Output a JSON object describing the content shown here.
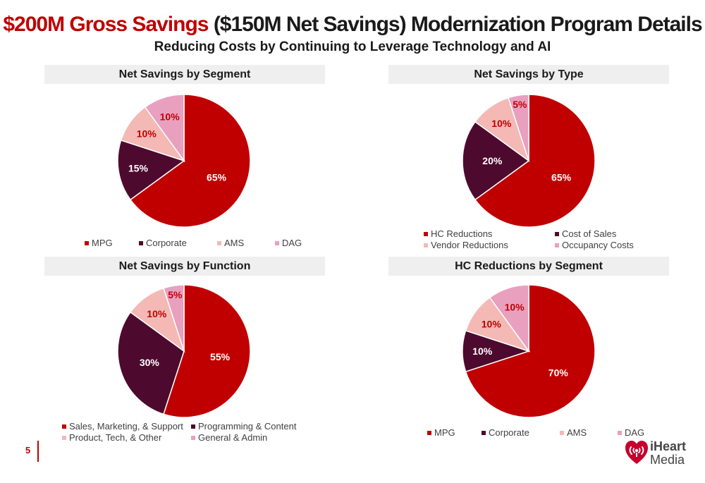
{
  "header": {
    "title_red": "$200M Gross Savings",
    "title_rest": " ($150M Net Savings) Modernization Program Details",
    "subtitle": "Reducing Costs by Continuing to Leverage Technology and AI"
  },
  "colors": {
    "dark_red": "#c00000",
    "maroon": "#4d0a2e",
    "light_pink": "#f4b9b4",
    "pink": "#e9a0bf"
  },
  "chart_data": [
    {
      "type": "pie",
      "title": "Net Savings by Segment",
      "categories": [
        "MPG",
        "Corporate",
        "AMS",
        "DAG"
      ],
      "values": [
        65,
        15,
        10,
        10
      ],
      "labels": [
        "65%",
        "15%",
        "10%",
        "10%"
      ],
      "colors": [
        "#c00000",
        "#4d0a2e",
        "#f4b9b4",
        "#e9a0bf"
      ],
      "legend_position": "bottom"
    },
    {
      "type": "pie",
      "title": "Net Savings by Type",
      "categories": [
        "HC Reductions",
        "Cost of Sales",
        "Vendor Reductions",
        "Occupancy Costs"
      ],
      "values": [
        65,
        20,
        10,
        5
      ],
      "labels": [
        "65%",
        "20%",
        "10%",
        "5%"
      ],
      "colors": [
        "#c00000",
        "#4d0a2e",
        "#f4b9b4",
        "#e9a0bf"
      ],
      "legend_position": "bottom"
    },
    {
      "type": "pie",
      "title": "Net Savings by Function",
      "categories": [
        "Sales, Marketing, & Support",
        "Programming & Content",
        "Product, Tech, & Other",
        "General & Admin"
      ],
      "values": [
        55,
        30,
        10,
        5
      ],
      "labels": [
        "55%",
        "30%",
        "10%",
        "5%"
      ],
      "colors": [
        "#c00000",
        "#4d0a2e",
        "#f4b9b4",
        "#e9a0bf"
      ],
      "legend_position": "bottom"
    },
    {
      "type": "pie",
      "title": "HC Reductions by Segment",
      "categories": [
        "MPG",
        "Corporate",
        "AMS",
        "DAG"
      ],
      "values": [
        70,
        10,
        10,
        10
      ],
      "labels": [
        "70%",
        "10%",
        "10%",
        "10%"
      ],
      "colors": [
        "#c00000",
        "#4d0a2e",
        "#f4b9b4",
        "#e9a0bf"
      ],
      "legend_position": "bottom"
    }
  ],
  "footer": {
    "page_number": "5",
    "logo_line1": "iHeart",
    "logo_line2": "Media"
  }
}
